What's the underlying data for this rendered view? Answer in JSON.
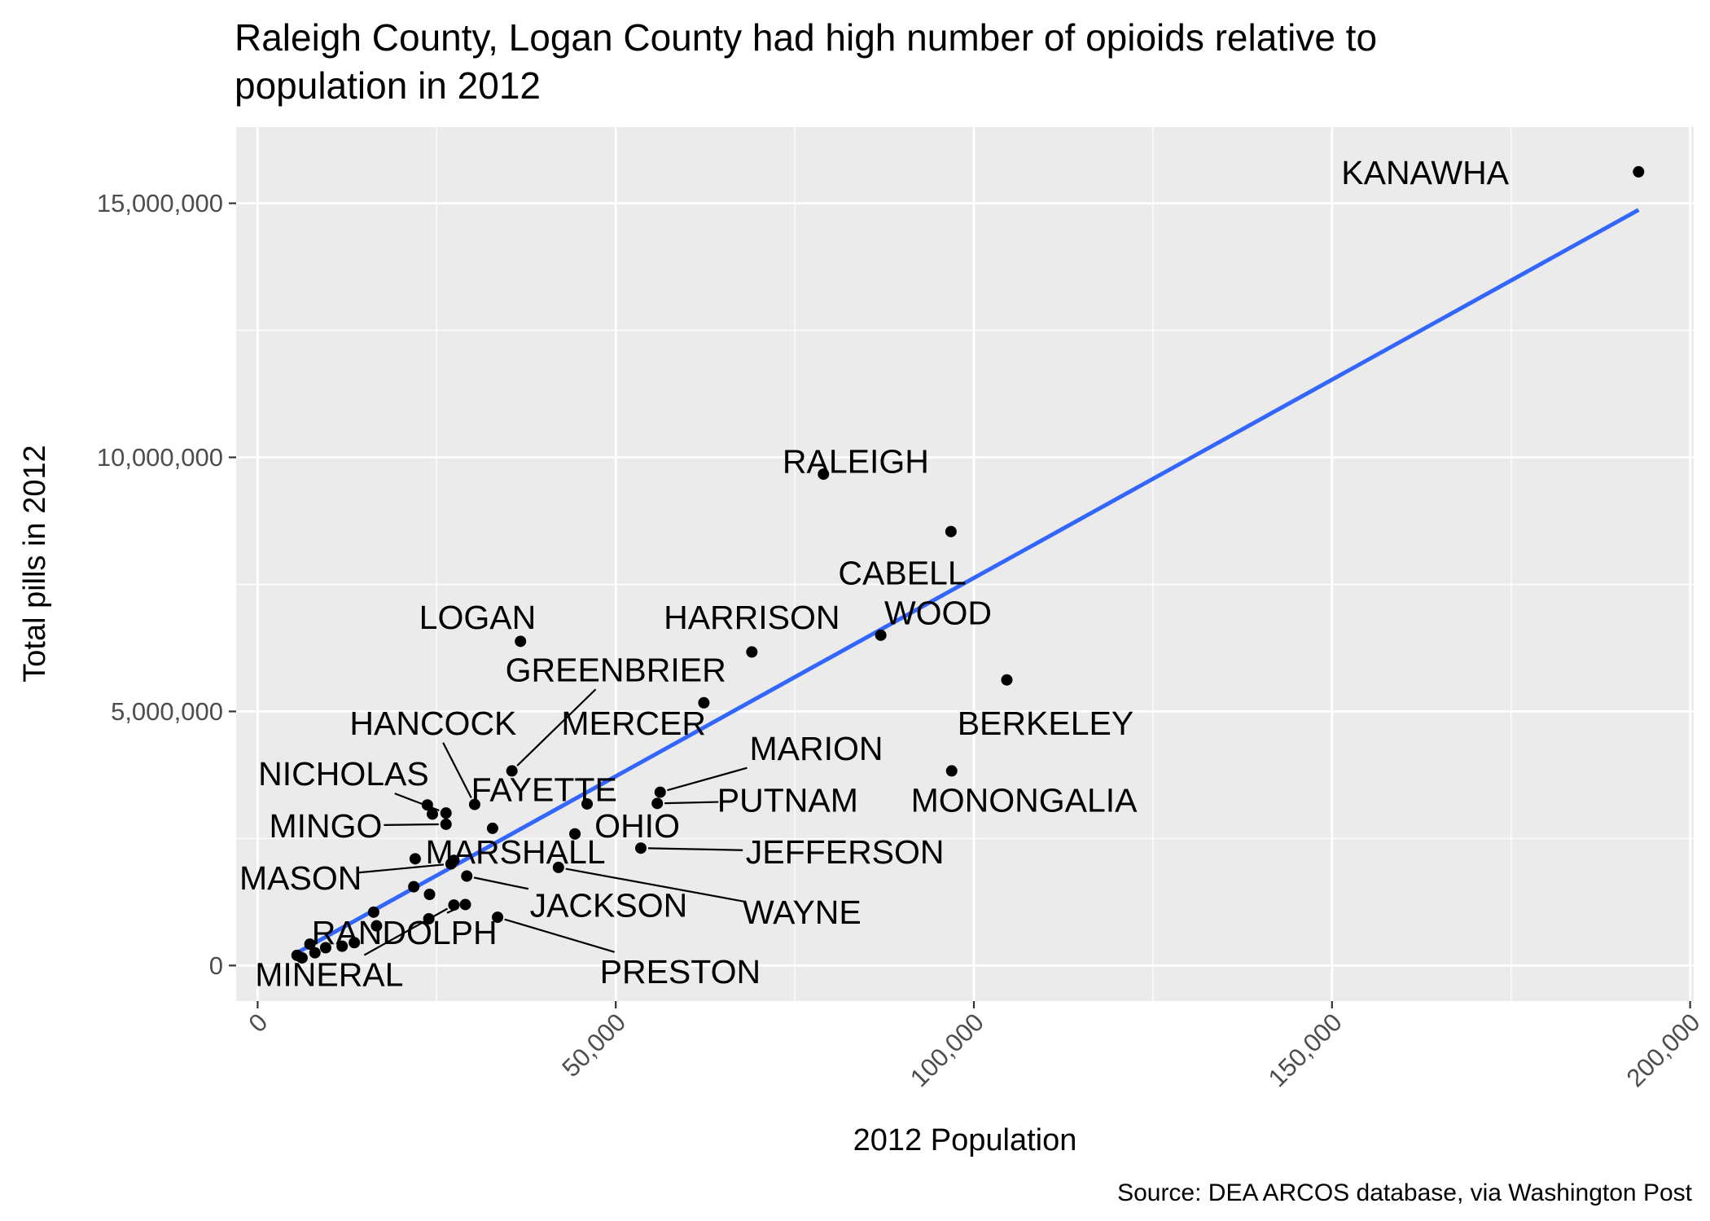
{
  "chart_data": {
    "type": "scatter",
    "title_lines": [
      "Raleigh County, Logan County had high number of opioids relative to",
      "population in 2012"
    ],
    "xlabel": "2012 Population",
    "ylabel": "Total pills in 2012",
    "caption": "Source: DEA ARCOS database, via Washington Post",
    "xlim": [
      -3000,
      200500
    ],
    "ylim": [
      -700000,
      16500000
    ],
    "x_ticks": [
      {
        "value": 0,
        "label": "0"
      },
      {
        "value": 50000,
        "label": "50,000"
      },
      {
        "value": 100000,
        "label": "100,000"
      },
      {
        "value": 150000,
        "label": "150,000"
      },
      {
        "value": 200000,
        "label": "200,000"
      }
    ],
    "y_ticks": [
      {
        "value": 0,
        "label": "0"
      },
      {
        "value": 5000000,
        "label": "5,000,000"
      },
      {
        "value": 10000000,
        "label": "10,000,000"
      },
      {
        "value": 15000000,
        "label": "15,000,000"
      }
    ],
    "grid": true,
    "trend_line": {
      "color": "#3366ff",
      "x": [
        5500,
        192800
      ],
      "y": [
        250000,
        14870000
      ]
    },
    "colors": {
      "panel": "#ebebeb",
      "grid": "#ffffff",
      "point": "#000000"
    },
    "points": [
      {
        "name": "KANAWHA",
        "x": 192800,
        "y": 15620000,
        "label_x": 163000,
        "label_y": 15600000
      },
      {
        "name": "RALEIGH",
        "x": 79000,
        "y": 9670000,
        "label_x": 83500,
        "label_y": 9920000
      },
      {
        "name": "CABELL",
        "x": 96800,
        "y": 8540000,
        "label_x": 90000,
        "label_y": 7720000
      },
      {
        "name": "WOOD",
        "x": 87000,
        "y": 6500000,
        "label_x": 95000,
        "label_y": 6940000
      },
      {
        "name": "HARRISON",
        "x": 69000,
        "y": 6170000,
        "label_x": 69000,
        "label_y": 6850000
      },
      {
        "name": "LOGAN",
        "x": 36700,
        "y": 6380000,
        "label_x": 30700,
        "label_y": 6850000
      },
      {
        "name": "GREENBRIER",
        "x": 35500,
        "y": 3830000,
        "label_x": 50000,
        "label_y": 5820000,
        "connector": true
      },
      {
        "name": "BERKELEY",
        "x": 104600,
        "y": 5620000,
        "label_x": 110000,
        "label_y": 4770000
      },
      {
        "name": "MERCER",
        "x": 62300,
        "y": 5170000,
        "label_x": 52500,
        "label_y": 4770000
      },
      {
        "name": "HANCOCK",
        "x": 30300,
        "y": 3170000,
        "label_x": 24500,
        "label_y": 4770000,
        "connector": true
      },
      {
        "name": "MARION",
        "x": 56200,
        "y": 3410000,
        "label_x": 78000,
        "label_y": 4270000,
        "connector": true
      },
      {
        "name": "MONONGALIA",
        "x": 96900,
        "y": 3830000,
        "label_x": 107000,
        "label_y": 3250000
      },
      {
        "name": "NICHOLAS",
        "x": 26300,
        "y": 3000000,
        "label_x": 12000,
        "label_y": 3770000,
        "connector": true
      },
      {
        "name": "FAYETTE",
        "x": 46000,
        "y": 3180000,
        "label_x": 40000,
        "label_y": 3460000
      },
      {
        "name": "PUTNAM",
        "x": 55800,
        "y": 3190000,
        "label_x": 74000,
        "label_y": 3250000,
        "connector": true
      },
      {
        "name": "MINGO",
        "x": 26300,
        "y": 2780000,
        "label_x": 9500,
        "label_y": 2750000,
        "connector": true
      },
      {
        "name": "OHIO",
        "x": 44300,
        "y": 2590000,
        "label_x": 53000,
        "label_y": 2750000
      },
      {
        "name": "JEFFERSON",
        "x": 53500,
        "y": 2310000,
        "label_x": 82000,
        "label_y": 2230000,
        "connector": true
      },
      {
        "name": "MARSHALL",
        "x": 27400,
        "y": 2070000,
        "label_x": 36000,
        "label_y": 2230000
      },
      {
        "name": "MASON",
        "x": 27000,
        "y": 2000000,
        "label_x": 6000,
        "label_y": 1720000,
        "connector": true
      },
      {
        "name": "JACKSON",
        "x": 29200,
        "y": 1760000,
        "label_x": 49000,
        "label_y": 1180000,
        "connector": true
      },
      {
        "name": "WAYNE",
        "x": 42000,
        "y": 1930000,
        "label_x": 76000,
        "label_y": 1050000,
        "connector": true
      },
      {
        "name": "RANDOLPH",
        "x": 29000,
        "y": 1200000,
        "label_x": 20500,
        "label_y": 650000,
        "connector": true
      },
      {
        "name": "PRESTON",
        "x": 33500,
        "y": 950000,
        "label_x": 59000,
        "label_y": -120000,
        "connector": true
      },
      {
        "name": "MINERAL",
        "x": 27400,
        "y": 1190000,
        "label_x": 10000,
        "label_y": -180000,
        "connector": true
      },
      {
        "name": "",
        "x": 32800,
        "y": 2700000
      },
      {
        "name": "",
        "x": 23700,
        "y": 3160000
      },
      {
        "name": "",
        "x": 24400,
        "y": 2980000
      },
      {
        "name": "",
        "x": 22000,
        "y": 2100000
      },
      {
        "name": "",
        "x": 21800,
        "y": 1550000
      },
      {
        "name": "",
        "x": 24000,
        "y": 1400000
      },
      {
        "name": "",
        "x": 23900,
        "y": 920000
      },
      {
        "name": "",
        "x": 16600,
        "y": 780000
      },
      {
        "name": "",
        "x": 16200,
        "y": 1050000
      },
      {
        "name": "",
        "x": 13500,
        "y": 450000
      },
      {
        "name": "",
        "x": 11800,
        "y": 380000
      },
      {
        "name": "",
        "x": 9500,
        "y": 350000
      },
      {
        "name": "",
        "x": 8000,
        "y": 250000
      },
      {
        "name": "",
        "x": 7300,
        "y": 420000
      },
      {
        "name": "",
        "x": 6200,
        "y": 150000
      },
      {
        "name": "",
        "x": 5500,
        "y": 200000
      }
    ]
  }
}
